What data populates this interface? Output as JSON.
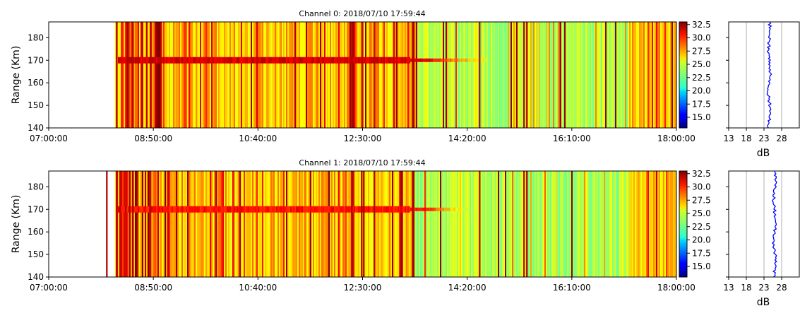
{
  "figure": {
    "panels": [
      {
        "title": "Channel 0: 2018/07/10 17:59:44",
        "ylabel": "Range (Km)",
        "side_xlabel": "dB"
      },
      {
        "title": "Channel 1: 2018/07/10 17:59:44",
        "ylabel": "Range (Km)",
        "side_xlabel": "dB"
      }
    ]
  },
  "colors": {
    "colormap": "jet",
    "profile_line": "#0000ff",
    "grid": "#b0b0b0"
  },
  "chart_data": [
    {
      "type": "heatmap",
      "title": "Channel 0: 2018/07/10 17:59:44",
      "xlabel": "",
      "ylabel": "Range (Km)",
      "x_ticks": [
        "07:00:00",
        "08:50:00",
        "10:40:00",
        "12:30:00",
        "14:20:00",
        "16:10:00",
        "18:00:00"
      ],
      "y_ticks": [
        140,
        150,
        160,
        170,
        180
      ],
      "ylim": [
        140,
        187
      ],
      "data_start": "08:10:00",
      "echo_layer": {
        "range_km": 170,
        "start": "07:50:00",
        "end": "14:40:00",
        "peak_dB": 32
      },
      "colorbar": {
        "ticks": [
          15.0,
          17.5,
          20.0,
          22.5,
          25.0,
          27.5,
          30.0,
          32.5
        ],
        "range": [
          13,
          33
        ]
      },
      "side_profile": {
        "xlabel": "dB",
        "x_ticks": [
          13,
          18,
          23,
          28
        ],
        "xlim": [
          13,
          33
        ],
        "mean_dB": 24.5,
        "grid": true
      }
    },
    {
      "type": "heatmap",
      "title": "Channel 1: 2018/07/10 17:59:44",
      "xlabel": "",
      "ylabel": "Range (Km)",
      "x_ticks": [
        "07:00:00",
        "08:50:00",
        "10:40:00",
        "12:30:00",
        "14:20:00",
        "16:10:00",
        "18:00:00"
      ],
      "y_ticks": [
        140,
        150,
        160,
        170,
        180
      ],
      "ylim": [
        140,
        187
      ],
      "data_start": "08:10:00",
      "echo_layer": {
        "range_km": 170,
        "start": "07:50:00",
        "end": "14:20:00",
        "peak_dB": 31
      },
      "colorbar": {
        "ticks": [
          15.0,
          17.5,
          20.0,
          22.5,
          25.0,
          27.5,
          30.0,
          32.5
        ],
        "range": [
          13,
          33
        ]
      },
      "side_profile": {
        "xlabel": "dB",
        "x_ticks": [
          13,
          18,
          23,
          28
        ],
        "xlim": [
          13,
          33
        ],
        "mean_dB": 26,
        "grid": true
      }
    }
  ]
}
